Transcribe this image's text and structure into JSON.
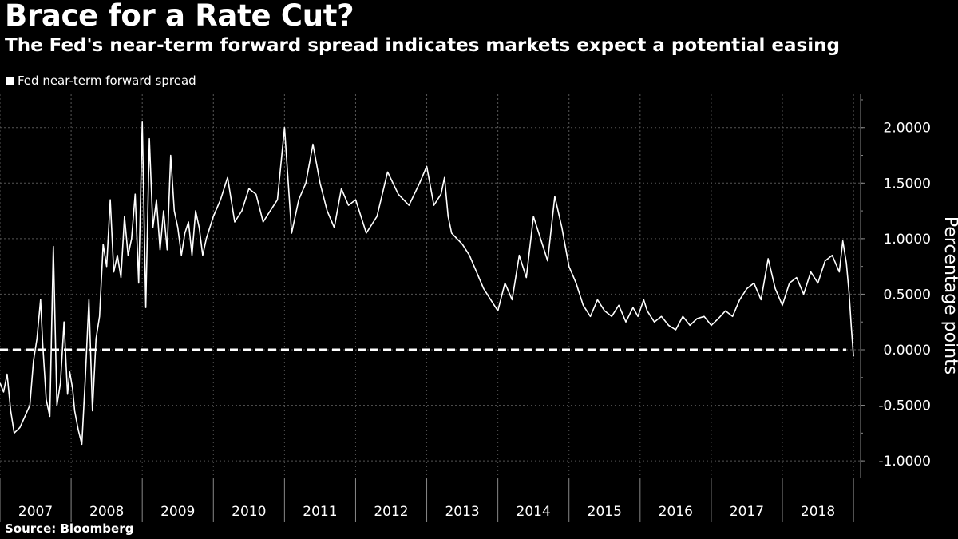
{
  "title": "Brace for a Rate Cut?",
  "subtitle": "The Fed's near-term forward spread indicates markets expect a potential easing",
  "source": "Source:  Bloomberg",
  "colors": {
    "background": "#000000",
    "line": "#ffffff",
    "grid": "#555555",
    "zero_line": "#ffffff"
  },
  "chart_data": {
    "type": "line",
    "title": "Brace for a Rate Cut?",
    "xlabel": "",
    "ylabel": "Percentage points",
    "ylim": [
      -1.15,
      2.3
    ],
    "xlim": [
      2007.0,
      2019.1
    ],
    "y_ticks": [
      2.0,
      1.5,
      1.0,
      0.5,
      0.0,
      -0.5,
      -1.0
    ],
    "y_tick_labels": [
      "2.0000",
      "1.5000",
      "1.0000",
      "0.5000",
      "0.0000",
      "-0.5000",
      "-1.0000"
    ],
    "x_tick_labels": [
      "2007",
      "2008",
      "2009",
      "2010",
      "2011",
      "2012",
      "2013",
      "2014",
      "2015",
      "2016",
      "2017",
      "2018"
    ],
    "legend": {
      "position": "top-left",
      "entries": [
        "Fed near-term forward spread"
      ]
    },
    "reference_line": {
      "y": 0.0,
      "style": "dashed"
    },
    "series": [
      {
        "name": "Fed near-term forward spread",
        "x": [
          2007.0,
          2007.05,
          2007.1,
          2007.15,
          2007.2,
          2007.28,
          2007.35,
          2007.42,
          2007.47,
          2007.52,
          2007.57,
          2007.6,
          2007.65,
          2007.7,
          2007.75,
          2007.8,
          2007.85,
          2007.9,
          2007.95,
          2007.98,
          2008.02,
          2008.05,
          2008.1,
          2008.15,
          2008.2,
          2008.25,
          2008.3,
          2008.35,
          2008.4,
          2008.45,
          2008.5,
          2008.55,
          2008.6,
          2008.65,
          2008.7,
          2008.75,
          2008.8,
          2008.85,
          2008.9,
          2008.95,
          2009.0,
          2009.05,
          2009.1,
          2009.15,
          2009.2,
          2009.25,
          2009.3,
          2009.35,
          2009.4,
          2009.45,
          2009.5,
          2009.55,
          2009.6,
          2009.65,
          2009.7,
          2009.75,
          2009.8,
          2009.85,
          2009.9,
          2009.95,
          2010.0,
          2010.1,
          2010.2,
          2010.3,
          2010.4,
          2010.5,
          2010.6,
          2010.7,
          2010.8,
          2010.9,
          2011.0,
          2011.1,
          2011.2,
          2011.3,
          2011.4,
          2011.5,
          2011.6,
          2011.7,
          2011.8,
          2011.9,
          2012.0,
          2012.15,
          2012.3,
          2012.45,
          2012.6,
          2012.75,
          2012.9,
          2013.0,
          2013.1,
          2013.2,
          2013.25,
          2013.3,
          2013.35,
          2013.5,
          2013.6,
          2013.7,
          2013.8,
          2013.9,
          2014.0,
          2014.1,
          2014.2,
          2014.3,
          2014.4,
          2014.5,
          2014.6,
          2014.7,
          2014.8,
          2014.9,
          2015.0,
          2015.1,
          2015.2,
          2015.3,
          2015.4,
          2015.5,
          2015.6,
          2015.7,
          2015.8,
          2015.9,
          2015.97,
          2016.05,
          2016.1,
          2016.2,
          2016.3,
          2016.4,
          2016.5,
          2016.6,
          2016.7,
          2016.8,
          2016.9,
          2017.0,
          2017.1,
          2017.2,
          2017.3,
          2017.4,
          2017.5,
          2017.6,
          2017.7,
          2017.8,
          2017.9,
          2018.0,
          2018.1,
          2018.2,
          2018.3,
          2018.4,
          2018.5,
          2018.6,
          2018.7,
          2018.8,
          2018.85,
          2018.9,
          2018.94,
          2018.97,
          2019.0
        ],
        "y": [
          -0.3,
          -0.38,
          -0.22,
          -0.55,
          -0.75,
          -0.7,
          -0.6,
          -0.5,
          -0.1,
          0.1,
          0.45,
          0.05,
          -0.45,
          -0.6,
          0.93,
          -0.5,
          -0.3,
          0.25,
          -0.4,
          -0.2,
          -0.35,
          -0.55,
          -0.72,
          -0.85,
          -0.25,
          0.45,
          -0.55,
          0.1,
          0.3,
          0.95,
          0.75,
          1.35,
          0.7,
          0.85,
          0.65,
          1.2,
          0.85,
          1.0,
          1.4,
          0.6,
          2.05,
          0.38,
          1.9,
          1.1,
          1.35,
          0.9,
          1.25,
          0.9,
          1.75,
          1.25,
          1.1,
          0.85,
          1.05,
          1.15,
          0.85,
          1.25,
          1.1,
          0.85,
          1.0,
          1.1,
          1.2,
          1.35,
          1.55,
          1.15,
          1.25,
          1.45,
          1.4,
          1.15,
          1.25,
          1.35,
          2.0,
          1.05,
          1.35,
          1.5,
          1.85,
          1.5,
          1.25,
          1.1,
          1.45,
          1.3,
          1.35,
          1.05,
          1.2,
          1.6,
          1.4,
          1.3,
          1.5,
          1.65,
          1.3,
          1.4,
          1.55,
          1.2,
          1.05,
          0.95,
          0.85,
          0.7,
          0.55,
          0.45,
          0.35,
          0.6,
          0.45,
          0.85,
          0.65,
          1.2,
          1.0,
          0.8,
          1.38,
          1.1,
          0.75,
          0.6,
          0.4,
          0.3,
          0.45,
          0.35,
          0.3,
          0.4,
          0.25,
          0.38,
          0.3,
          0.45,
          0.35,
          0.25,
          0.3,
          0.22,
          0.18,
          0.3,
          0.22,
          0.28,
          0.3,
          0.22,
          0.28,
          0.35,
          0.3,
          0.45,
          0.55,
          0.6,
          0.45,
          0.82,
          0.55,
          0.4,
          0.6,
          0.65,
          0.5,
          0.7,
          0.6,
          0.8,
          0.85,
          0.7,
          0.98,
          0.78,
          0.5,
          0.2,
          -0.06
        ]
      }
    ]
  }
}
